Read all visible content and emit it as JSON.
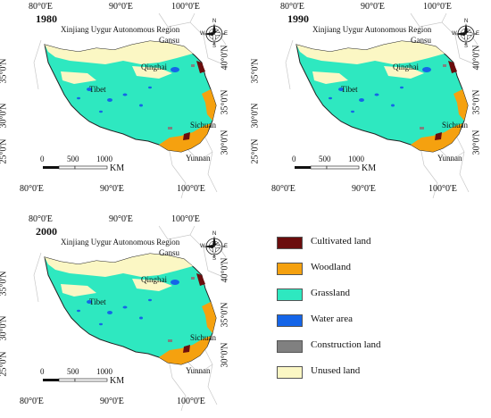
{
  "panels": [
    {
      "year": "1980",
      "xticks_top": [
        "80°0'E",
        "90°0'E",
        "100°0'E"
      ],
      "xticks_bottom": [
        "80°0'E",
        "90°0'E",
        "100°0'E"
      ],
      "yticks_left": [
        "35°0'N",
        "30°0'N",
        "25°0'N"
      ],
      "yticks_right": [
        "40°0'N",
        "35°0'N",
        "30°0'N"
      ]
    },
    {
      "year": "1990",
      "xticks_top": [
        "80°0'E",
        "90°0'E",
        "100°0'E"
      ],
      "xticks_bottom": [
        "80°0'E",
        "90°0'E",
        "100°0'E"
      ],
      "yticks_left": [
        "35°0'N",
        "30°0'N",
        "25°0'N"
      ],
      "yticks_right": [
        "40°0'N",
        "35°0'N",
        "30°0'N"
      ]
    },
    {
      "year": "2000",
      "xticks_top": [
        "80°0'E",
        "90°0'E",
        "100°0'E"
      ],
      "xticks_bottom": [
        "80°0'E",
        "90°0'E",
        "100°0'E"
      ],
      "yticks_left": [
        "35°0'N",
        "30°0'N",
        "25°0'N"
      ],
      "yticks_right": [
        "40°0'N",
        "35°0'N",
        "30°0'N"
      ]
    }
  ],
  "regions": {
    "xinjiang": "Xinjiang Uygur Autonomous Region",
    "gansu": "Gansu",
    "qinghai": "Qinghai",
    "tibet": "Tibet",
    "sichuan": "Sichuan",
    "yunnan": "Yunnan"
  },
  "scalebar": {
    "labels": [
      "0",
      "500",
      "1000"
    ],
    "unit": "KM"
  },
  "compass": {
    "n": "N",
    "s": "S",
    "e": "E",
    "w": "W"
  },
  "legend": [
    {
      "label": "Cultivated land",
      "color": "#6b0d0d"
    },
    {
      "label": "Woodland",
      "color": "#f5a10f"
    },
    {
      "label": "Grassland",
      "color": "#2ee8c0"
    },
    {
      "label": "Water area",
      "color": "#1565e8"
    },
    {
      "label": "Construction land",
      "color": "#808080"
    },
    {
      "label": "Unused land",
      "color": "#fbf7c4"
    }
  ]
}
